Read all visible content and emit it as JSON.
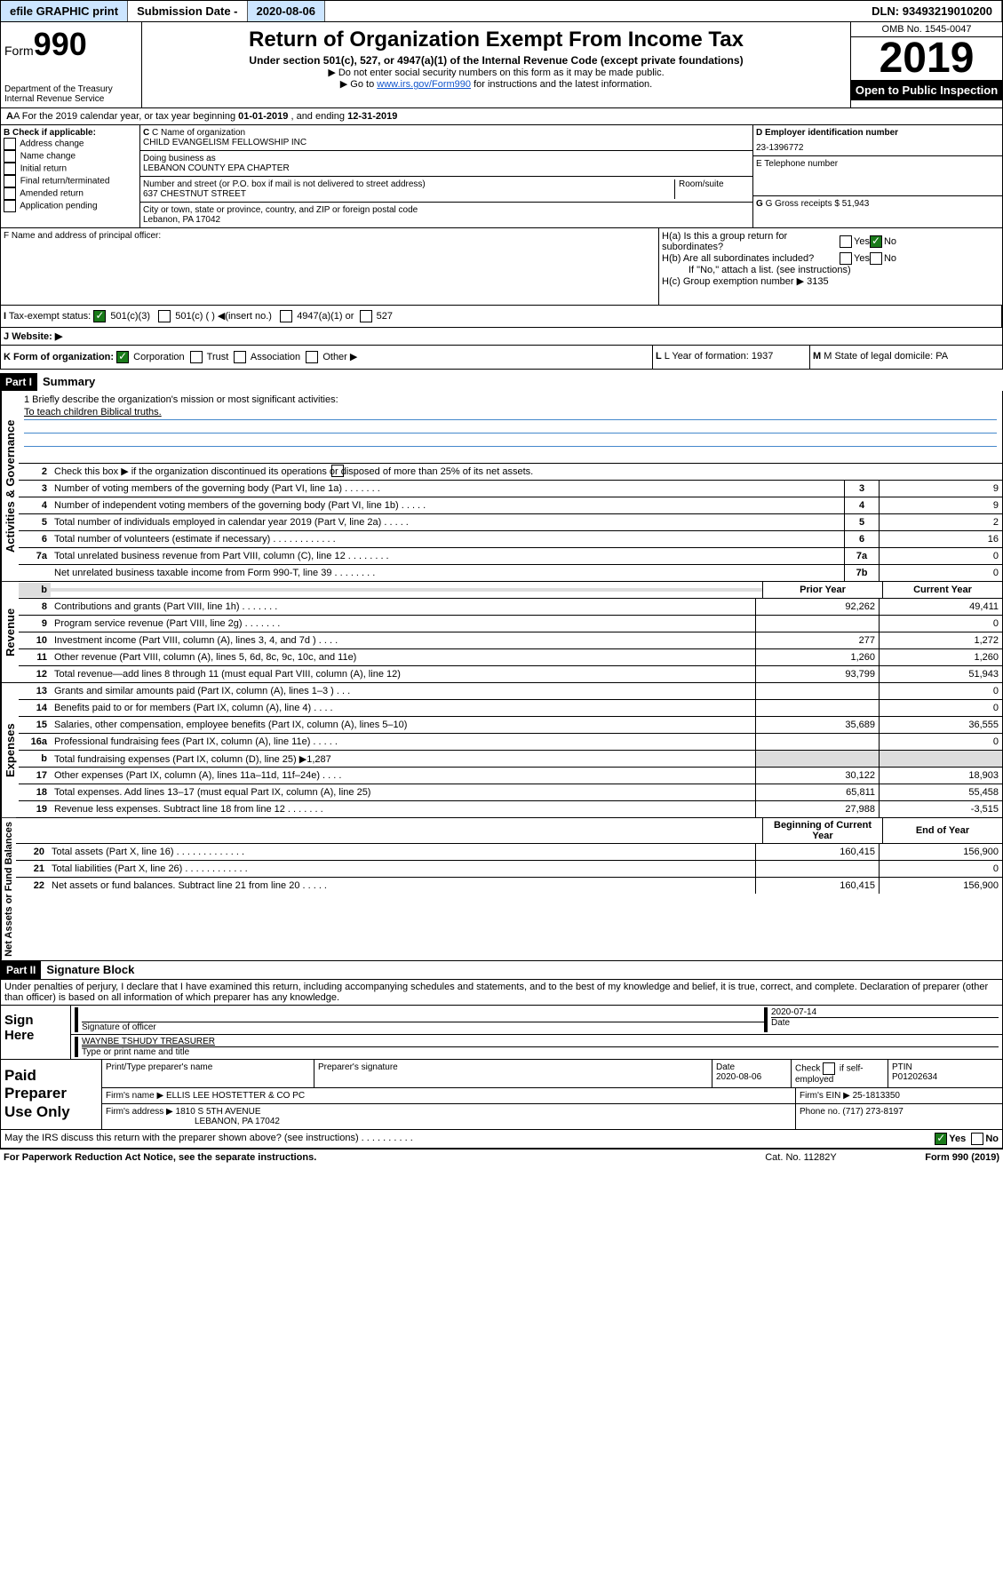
{
  "toolbar": {
    "efile": "efile GRAPHIC print",
    "sub_label": "Submission Date - ",
    "sub_date": "2020-08-06",
    "dln_label": "DLN: ",
    "dln": "93493219010200"
  },
  "header": {
    "form_prefix": "Form",
    "form_num": "990",
    "dept": "Department of the Treasury\nInternal Revenue Service",
    "title": "Return of Organization Exempt From Income Tax",
    "sub1": "Under section 501(c), 527, or 4947(a)(1) of the Internal Revenue Code (except private foundations)",
    "sub2": "▶ Do not enter social security numbers on this form as it may be made public.",
    "sub3_pre": "▶ Go to ",
    "sub3_link": "www.irs.gov/Form990",
    "sub3_post": " for instructions and the latest information.",
    "omb": "OMB No. 1545-0047",
    "year": "2019",
    "open_pub": "Open to Public Inspection"
  },
  "tax_year": {
    "a_label": "A For the 2019 calendar year, or tax year beginning ",
    "begin": "01-01-2019",
    "mid": " , and ending ",
    "end": "12-31-2019"
  },
  "section_b": {
    "b_label": "B Check if applicable:",
    "opts": [
      "Address change",
      "Name change",
      "Initial return",
      "Final return/terminated",
      "Amended return",
      "Application pending"
    ],
    "c_name_label": "C Name of organization",
    "c_name": "CHILD EVANGELISM FELLOWSHIP INC",
    "dba_label": "Doing business as",
    "dba": "LEBANON COUNTY EPA CHAPTER",
    "addr_label": "Number and street (or P.O. box if mail is not delivered to street address)",
    "room_label": "Room/suite",
    "addr": "637 CHESTNUT STREET",
    "city_label": "City or town, state or province, country, and ZIP or foreign postal code",
    "city": "Lebanon, PA  17042",
    "d_label": "D Employer identification number",
    "d_ein": "23-1396772",
    "e_label": "E Telephone number",
    "g_label": "G Gross receipts $ ",
    "g_val": "51,943"
  },
  "name_addr": {
    "f_label": "F  Name and address of principal officer:",
    "ha_label": "H(a)  Is this a group return for subordinates?",
    "hb_label": "H(b)  Are all subordinates included?",
    "hb_note": "If \"No,\" attach a list. (see instructions)",
    "hc_label": "H(c)  Group exemption number ▶",
    "hc_val": "3135",
    "yes": "Yes",
    "no": "No"
  },
  "exempt": {
    "i_label": "I",
    "status_label": "Tax-exempt status:",
    "o501c3": "501(c)(3)",
    "o501c": "501(c) (  ) ◀(insert no.)",
    "o4947": "4947(a)(1) or",
    "o527": "527"
  },
  "website": {
    "j_label": "J",
    "label": "Website: ▶"
  },
  "form_org": {
    "k_label": "K Form of organization:",
    "corp": "Corporation",
    "trust": "Trust",
    "assoc": "Association",
    "other": "Other ▶",
    "l_label": "L Year of formation: ",
    "l_val": "1937",
    "m_label": "M State of legal domicile: ",
    "m_val": "PA"
  },
  "parts": {
    "p1": "Part I",
    "p1_title": "Summary",
    "p2": "Part II",
    "p2_title": "Signature Block"
  },
  "summary": {
    "q1": "1  Briefly describe the organization's mission or most significant activities:",
    "q1_ans": "To teach children Biblical truths.",
    "q2": "Check this box ▶         if the organization discontinued its operations or disposed of more than 25% of its net assets.",
    "labels": {
      "gov": "Activities & Governance",
      "rev": "Revenue",
      "exp": "Expenses",
      "net": "Net Assets or Fund Balances"
    },
    "col_prior": "Prior Year",
    "col_curr": "Current Year",
    "col_begin": "Beginning of Current Year",
    "col_end": "End of Year",
    "rows_gov": [
      {
        "n": "3",
        "t": "Number of voting members of the governing body (Part VI, line 1a) . . . . . . .",
        "box": "3",
        "v": "9"
      },
      {
        "n": "4",
        "t": "Number of independent voting members of the governing body (Part VI, line 1b) . . . . .",
        "box": "4",
        "v": "9"
      },
      {
        "n": "5",
        "t": "Total number of individuals employed in calendar year 2019 (Part V, line 2a) . . . . .",
        "box": "5",
        "v": "2"
      },
      {
        "n": "6",
        "t": "Total number of volunteers (estimate if necessary) . . . . . . . . . . . .",
        "box": "6",
        "v": "16"
      },
      {
        "n": "7a",
        "t": "Total unrelated business revenue from Part VIII, column (C), line 12 . . . . . . . .",
        "box": "7a",
        "v": "0"
      },
      {
        "n": "",
        "t": "Net unrelated business taxable income from Form 990-T, line 39 . . . . . . . .",
        "box": "7b",
        "v": "0"
      }
    ],
    "row_b": {
      "n": "b",
      "t": ""
    },
    "rows_rev": [
      {
        "n": "8",
        "t": "Contributions and grants (Part VIII, line 1h) . . . . . . .",
        "p": "92,262",
        "c": "49,411"
      },
      {
        "n": "9",
        "t": "Program service revenue (Part VIII, line 2g) . . . . . . .",
        "p": "",
        "c": "0"
      },
      {
        "n": "10",
        "t": "Investment income (Part VIII, column (A), lines 3, 4, and 7d ) . . . .",
        "p": "277",
        "c": "1,272"
      },
      {
        "n": "11",
        "t": "Other revenue (Part VIII, column (A), lines 5, 6d, 8c, 9c, 10c, and 11e)",
        "p": "1,260",
        "c": "1,260"
      },
      {
        "n": "12",
        "t": "Total revenue—add lines 8 through 11 (must equal Part VIII, column (A), line 12)",
        "p": "93,799",
        "c": "51,943"
      }
    ],
    "rows_exp": [
      {
        "n": "13",
        "t": "Grants and similar amounts paid (Part IX, column (A), lines 1–3 ) . . .",
        "p": "",
        "c": "0"
      },
      {
        "n": "14",
        "t": "Benefits paid to or for members (Part IX, column (A), line 4) . . . .",
        "p": "",
        "c": "0"
      },
      {
        "n": "15",
        "t": "Salaries, other compensation, employee benefits (Part IX, column (A), lines 5–10)",
        "p": "35,689",
        "c": "36,555"
      },
      {
        "n": "16a",
        "t": "Professional fundraising fees (Part IX, column (A), line 11e) . . . . .",
        "p": "",
        "c": "0"
      },
      {
        "n": "b",
        "t": "Total fundraising expenses (Part IX, column (D), line 25) ▶1,287",
        "p": "shade",
        "c": "shade"
      },
      {
        "n": "17",
        "t": "Other expenses (Part IX, column (A), lines 11a–11d, 11f–24e) . . . .",
        "p": "30,122",
        "c": "18,903"
      },
      {
        "n": "18",
        "t": "Total expenses. Add lines 13–17 (must equal Part IX, column (A), line 25)",
        "p": "65,811",
        "c": "55,458"
      },
      {
        "n": "19",
        "t": "Revenue less expenses. Subtract line 18 from line 12 . . . . . . .",
        "p": "27,988",
        "c": "-3,515"
      }
    ],
    "rows_net": [
      {
        "n": "20",
        "t": "Total assets (Part X, line 16) . . . . . . . . . . . . .",
        "p": "160,415",
        "c": "156,900"
      },
      {
        "n": "21",
        "t": "Total liabilities (Part X, line 26) . . . . . . . . . . . .",
        "p": "",
        "c": "0"
      },
      {
        "n": "22",
        "t": "Net assets or fund balances. Subtract line 21 from line 20 . . . . .",
        "p": "160,415",
        "c": "156,900"
      }
    ]
  },
  "sig_declare": "Under penalties of perjury, I declare that I have examined this return, including accompanying schedules and statements, and to the best of my knowledge and belief, it is true, correct, and complete. Declaration of preparer (other than officer) is based on all information of which preparer has any knowledge.",
  "sig": {
    "label": "Sign Here",
    "sig_officer": "Signature of officer",
    "date_label": "Date",
    "date": "2020-07-14",
    "name": "WAYNBE TSHUDY TREASURER",
    "name_label": "Type or print name and title"
  },
  "paid": {
    "label": "Paid Preparer Use Only",
    "col1": "Print/Type preparer's name",
    "col2": "Preparer's signature",
    "col3": "Date",
    "date": "2020-08-06",
    "col4_pre": "Check",
    "col4_post": "if self-employed",
    "col5": "PTIN",
    "ptin": "P01202634",
    "firm_name_label": "Firm's name    ▶",
    "firm_name": "ELLIS LEE HOSTETTER & CO PC",
    "firm_ein_label": "Firm's EIN ▶",
    "firm_ein": "25-1813350",
    "firm_addr_label": "Firm's address ▶",
    "firm_addr1": "1810 S 5TH AVENUE",
    "firm_addr2": "LEBANON, PA  17042",
    "phone_label": "Phone no. ",
    "phone": "(717) 273-8197"
  },
  "discuss": {
    "text": "May the IRS discuss this return with the preparer shown above? (see instructions) . . . . . . . . . .",
    "yes": "Yes",
    "no": "No"
  },
  "footer": {
    "left": "For Paperwork Reduction Act Notice, see the separate instructions.",
    "mid": "Cat. No. 11282Y",
    "right": "Form 990 (2019)"
  }
}
